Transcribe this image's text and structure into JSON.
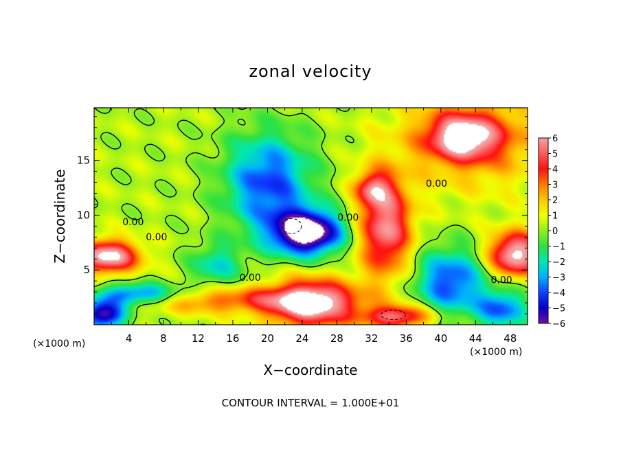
{
  "chart_data": {
    "type": "heatmap",
    "title": "zonal velocity",
    "xlabel": "X−coordinate",
    "ylabel": "Z−coordinate",
    "x_unit": "(×1000 m)",
    "z_unit": "(×1000 m)",
    "footer": "CONTOUR INTERVAL = 1.000E+01",
    "xlim": [
      0,
      50
    ],
    "ylim": [
      0,
      19.8
    ],
    "x_ticks": [
      "4",
      "8",
      "12",
      "16",
      "20",
      "24",
      "28",
      "32",
      "36",
      "40",
      "44",
      "48"
    ],
    "y_ticks": [
      "5",
      "10",
      "15"
    ],
    "colorbar": {
      "ticks": [
        "6",
        "5",
        "4",
        "3",
        "2",
        "1",
        "0",
        "−1",
        "−2",
        "−3",
        "−4",
        "−5",
        "−6"
      ],
      "range": [
        -6,
        6
      ]
    },
    "contour_labels": [
      {
        "text": "0.00",
        "x": 4.5,
        "z": 9.1
      },
      {
        "text": "0.00",
        "x": 7.2,
        "z": 7.7
      },
      {
        "text": "0.00",
        "x": 18.0,
        "z": 4.0
      },
      {
        "text": "0.00",
        "x": 29.3,
        "z": 9.5
      },
      {
        "text": "0.00",
        "x": 39.5,
        "z": 12.6
      },
      {
        "text": "0.00",
        "x": 47.0,
        "z": 3.8
      }
    ],
    "features": [
      {
        "name": "positive-maximum-upper-right",
        "cx": 42.5,
        "cz": 17.2,
        "rx": 4.0,
        "rz": 2.0,
        "value": 5.5
      },
      {
        "name": "positive-upper-right-broad",
        "cx": 44,
        "cz": 17,
        "rx": 9,
        "rz": 4.5,
        "value": 2.5
      },
      {
        "name": "positive-tilted-band-center",
        "cx": 33.5,
        "cz": 9.0,
        "rx": 3.0,
        "rz": 4.5,
        "value": 5.5
      },
      {
        "name": "positive-band-upper",
        "cx": 32,
        "cz": 12.5,
        "rx": 2,
        "rz": 1.5,
        "value": 3.5
      },
      {
        "name": "positive-left-edge",
        "cx": 1.5,
        "cz": 6.3,
        "rx": 3.5,
        "rz": 1.5,
        "value": 6.5
      },
      {
        "name": "positive-bottom-center",
        "cx": 25,
        "cz": 2.0,
        "rx": 5,
        "rz": 2.2,
        "value": 6.5
      },
      {
        "name": "positive-bottom-band",
        "cx": 15,
        "cz": 2.3,
        "rx": 12,
        "rz": 1.2,
        "value": 3.0
      },
      {
        "name": "positive-bottom-right-mid",
        "cx": 35,
        "cz": 0.8,
        "rx": 4,
        "rz": 1.0,
        "value": 5.0
      },
      {
        "name": "positive-right-edge",
        "cx": 48.5,
        "cz": 6.5,
        "rx": 3,
        "rz": 2.0,
        "value": 6.5
      },
      {
        "name": "negative-upper-center",
        "cx": 20,
        "cz": 13.0,
        "rx": 5,
        "rz": 4.5,
        "value": -4.5
      },
      {
        "name": "negative-core-center",
        "cx": 24.5,
        "cz": 8.5,
        "rx": 4,
        "rz": 2.0,
        "value": -8.0
      },
      {
        "name": "negative-lower-left",
        "cx": 5,
        "cz": 2.8,
        "rx": 5,
        "rz": 1.0,
        "value": -5.0
      },
      {
        "name": "negative-bottom-left",
        "cx": 1.0,
        "cz": 1.0,
        "rx": 2.5,
        "rz": 1.3,
        "value": -6.5
      },
      {
        "name": "negative-lower-right",
        "cx": 41,
        "cz": 4.0,
        "rx": 4,
        "rz": 3.0,
        "value": -4.5
      },
      {
        "name": "negative-right-bottom",
        "cx": 47,
        "cz": 1.5,
        "rx": 3,
        "rz": 1.8,
        "value": -4.0
      },
      {
        "name": "negative-left-tongue",
        "cx": 14,
        "cz": 5.5,
        "rx": 3,
        "rz": 2.0,
        "value": -2.5
      }
    ]
  }
}
